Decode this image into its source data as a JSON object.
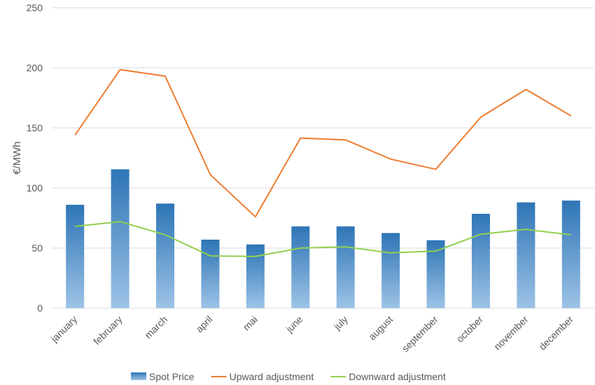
{
  "chart_data": {
    "type": "bar",
    "title": "",
    "xlabel": "",
    "ylabel": "€/MWh",
    "ylim": [
      0,
      250
    ],
    "yticks": [
      0,
      50,
      100,
      150,
      200,
      250
    ],
    "grid": true,
    "legend_position": "bottom",
    "categories": [
      "january",
      "february",
      "march",
      "april",
      "mai",
      "june",
      "july",
      "august",
      "september",
      "october",
      "november",
      "december"
    ],
    "series": [
      {
        "name": "Spot Price",
        "kind": "bar",
        "color": "#2e75b6",
        "color_light": "#9dc3e6",
        "values": [
          86,
          115.5,
          87,
          57,
          53,
          68,
          68,
          62.5,
          56.5,
          78.5,
          88,
          89.5
        ]
      },
      {
        "name": "Upward adjustment",
        "kind": "line",
        "color": "#ed7d31",
        "values": [
          144,
          198.5,
          193,
          111,
          76,
          141.5,
          140,
          124,
          115.5,
          159,
          182,
          160
        ]
      },
      {
        "name": "Downward adjustment",
        "kind": "line",
        "color": "#92d050",
        "values": [
          68,
          72,
          61,
          43.5,
          43,
          50,
          51,
          46,
          47.5,
          61.5,
          65.5,
          61
        ]
      }
    ]
  }
}
